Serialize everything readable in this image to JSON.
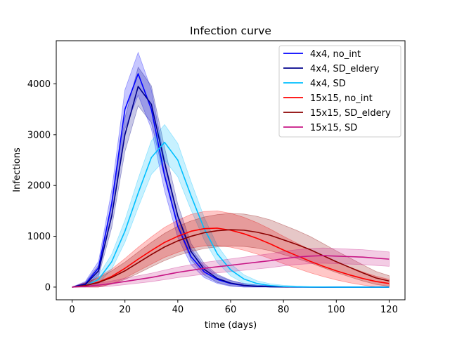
{
  "chart_data": {
    "type": "line",
    "title": "Infection curve",
    "xlabel": "time (days)",
    "ylabel": "Infections",
    "xlim": [
      -6,
      126
    ],
    "ylim": [
      -250,
      4850
    ],
    "xticks": [
      0,
      20,
      40,
      60,
      80,
      100,
      120
    ],
    "yticks": [
      0,
      1000,
      2000,
      3000,
      4000
    ],
    "grid": false,
    "legend_position": "top-right",
    "x": [
      0,
      5,
      10,
      15,
      20,
      25,
      30,
      35,
      40,
      45,
      50,
      55,
      60,
      65,
      70,
      75,
      80,
      85,
      90,
      95,
      100,
      105,
      110,
      115,
      120
    ],
    "series": [
      {
        "name": "4x4, no_int",
        "color": "#0000ff",
        "values": [
          0,
          60,
          380,
          1650,
          3500,
          4200,
          3500,
          2200,
          1200,
          600,
          300,
          150,
          70,
          30,
          15,
          8,
          4,
          2,
          1,
          0,
          0,
          0,
          0,
          0,
          0
        ],
        "band": 420
      },
      {
        "name": "4x4, SD_eldery",
        "color": "#00008b",
        "values": [
          0,
          50,
          320,
          1400,
          3000,
          3950,
          3600,
          2450,
          1400,
          700,
          350,
          170,
          80,
          35,
          15,
          7,
          3,
          1,
          0,
          0,
          0,
          0,
          0,
          0,
          0
        ],
        "band": 380
      },
      {
        "name": "4x4, SD",
        "color": "#00bfff",
        "values": [
          0,
          25,
          150,
          500,
          1100,
          1850,
          2550,
          2850,
          2500,
          1800,
          1150,
          650,
          340,
          160,
          70,
          30,
          12,
          5,
          2,
          1,
          0,
          0,
          0,
          0,
          0
        ],
        "band": 350
      },
      {
        "name": "15x15, no_int",
        "color": "#ff0000",
        "values": [
          0,
          30,
          100,
          210,
          370,
          550,
          720,
          880,
          1000,
          1100,
          1150,
          1160,
          1120,
          1050,
          960,
          850,
          730,
          620,
          510,
          410,
          320,
          240,
          170,
          110,
          70
        ],
        "band": 340
      },
      {
        "name": "15x15, SD_eldery",
        "color": "#8b0000",
        "values": [
          0,
          30,
          90,
          190,
          320,
          480,
          640,
          790,
          910,
          1000,
          1070,
          1110,
          1130,
          1120,
          1080,
          1020,
          930,
          840,
          740,
          620,
          500,
          390,
          280,
          180,
          120
        ],
        "band": 320
      },
      {
        "name": "15x15, SD",
        "color": "#c71585",
        "values": [
          0,
          15,
          40,
          70,
          110,
          150,
          190,
          240,
          290,
          330,
          370,
          400,
          430,
          460,
          490,
          520,
          560,
          590,
          610,
          620,
          610,
          600,
          590,
          570,
          550
        ],
        "band": 150
      }
    ]
  }
}
